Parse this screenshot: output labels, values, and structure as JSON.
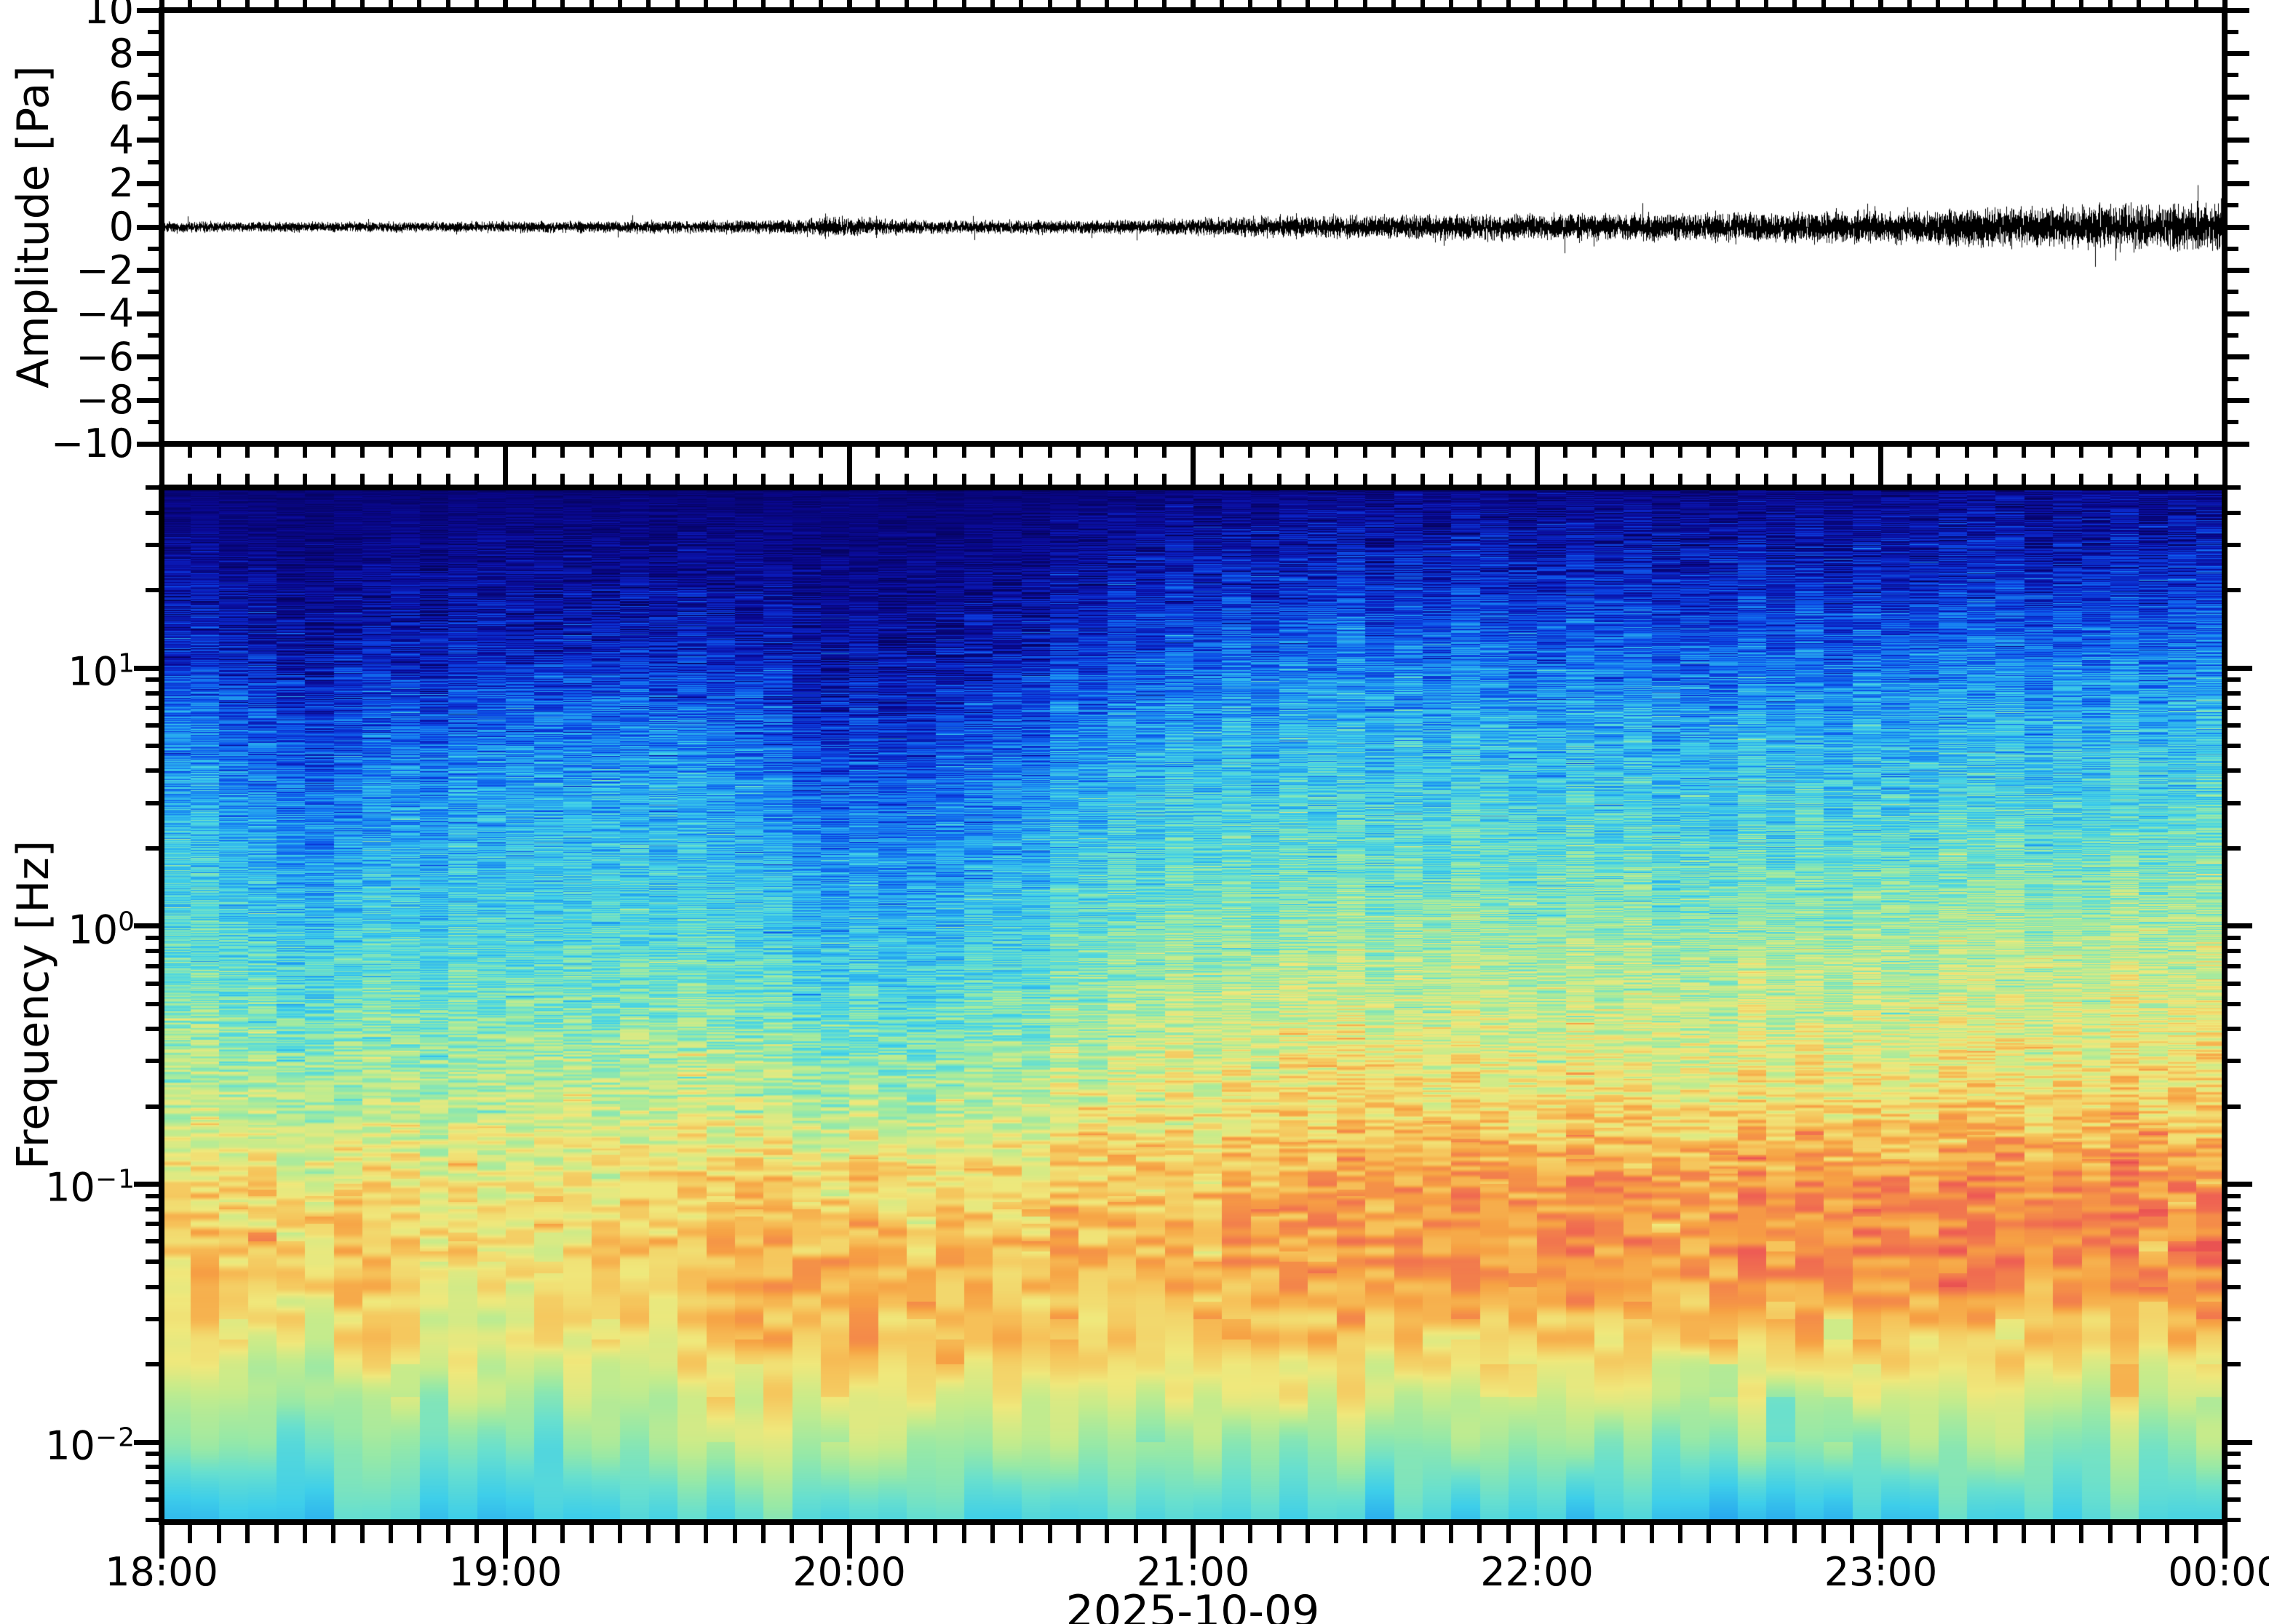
{
  "figure": {
    "background": "#ffffff",
    "frame_color": "#000000",
    "date_label": "2025-10-09"
  },
  "chart_data": [
    {
      "type": "line",
      "name": "pressure-waveform",
      "title": "",
      "xlabel": "",
      "ylabel": "Amplitude [Pa]",
      "ylim": [
        -10,
        10
      ],
      "ytick_values": [
        10,
        8,
        6,
        4,
        2,
        0,
        -2,
        -4,
        -6,
        -8,
        -10
      ],
      "ytick_labels": [
        "10",
        "8",
        "6",
        "4",
        "2",
        "0",
        "−2",
        "−4",
        "−6",
        "−8",
        "−10"
      ],
      "xtick_hours": [
        18,
        19,
        20,
        21,
        22,
        23,
        24
      ],
      "xtick_labels": [
        "18:00",
        "19:00",
        "20:00",
        "21:00",
        "22:00",
        "23:00",
        "00:00"
      ],
      "minor_xtick_minutes": 5,
      "line_color": "#000000",
      "noise_envelope": {
        "t_hours": [
          18.0,
          18.3,
          18.7,
          19.0,
          19.4,
          19.8,
          19.95,
          20.1,
          20.4,
          20.8,
          21.0,
          21.2,
          21.5,
          21.8,
          22.1,
          22.4,
          22.7,
          23.0,
          23.2,
          23.5,
          23.8,
          24.0
        ],
        "amp_pa": [
          0.22,
          0.21,
          0.2,
          0.22,
          0.24,
          0.28,
          0.4,
          0.3,
          0.26,
          0.28,
          0.33,
          0.42,
          0.46,
          0.5,
          0.54,
          0.57,
          0.6,
          0.62,
          0.72,
          0.82,
          0.9,
          0.97
        ]
      },
      "spikes": [
        {
          "t": 19.93,
          "amp_pa": 0.9
        },
        {
          "t": 20.08,
          "amp_pa": 0.75
        },
        {
          "t": 20.55,
          "amp_pa": 0.6
        },
        {
          "t": 21.3,
          "amp_pa": 0.85
        },
        {
          "t": 21.78,
          "amp_pa": 0.9
        },
        {
          "t": 22.2,
          "amp_pa": 0.8
        },
        {
          "t": 22.52,
          "amp_pa": 0.85
        },
        {
          "t": 22.87,
          "amp_pa": 1.5
        },
        {
          "t": 23.2,
          "amp_pa": 1.25
        },
        {
          "t": 23.45,
          "amp_pa": 1.15
        },
        {
          "t": 23.62,
          "amp_pa": 1.1
        },
        {
          "t": 23.85,
          "amp_pa": 1.45
        }
      ]
    },
    {
      "type": "heatmap",
      "name": "spectrogram",
      "title": "",
      "ylabel": "Frequency [Hz]",
      "yscale": "log",
      "freq_top_hz": 50,
      "freq_bottom_hz": 0.0049,
      "ytick_exponents": [
        1,
        0,
        -1,
        -2
      ],
      "ytick_exponent_labels": [
        "1",
        "0",
        "−1",
        "−2"
      ],
      "xtick_hours": [
        18,
        19,
        20,
        21,
        22,
        23,
        24
      ],
      "xtick_labels": [
        "18:00",
        "19:00",
        "20:00",
        "21:00",
        "22:00",
        "23:00",
        "00:00"
      ],
      "xlabel_date": "2025-10-09",
      "column_minutes": 5,
      "time_grid_hours": [
        18,
        18.5,
        19,
        19.5,
        20,
        20.5,
        21,
        21.5,
        22,
        22.5,
        23,
        23.5,
        24
      ],
      "freq_grid_log10hz": [
        1.7,
        1.4,
        1.1,
        0.8,
        0.5,
        0.2,
        -0.1,
        -0.4,
        -0.7,
        -1.0,
        -1.3,
        -1.6,
        -1.9,
        -2.31
      ],
      "intensity_grid": [
        [
          0.03,
          0.03,
          0.03,
          0.03,
          0.03,
          0.03,
          0.04,
          0.05,
          0.05,
          0.05,
          0.05,
          0.06,
          0.06
        ],
        [
          0.07,
          0.05,
          0.07,
          0.07,
          0.05,
          0.06,
          0.11,
          0.13,
          0.13,
          0.12,
          0.12,
          0.13,
          0.14
        ],
        [
          0.14,
          0.09,
          0.14,
          0.14,
          0.08,
          0.11,
          0.21,
          0.25,
          0.24,
          0.22,
          0.23,
          0.25,
          0.26
        ],
        [
          0.27,
          0.17,
          0.27,
          0.28,
          0.15,
          0.22,
          0.33,
          0.36,
          0.35,
          0.33,
          0.34,
          0.36,
          0.37
        ],
        [
          0.36,
          0.26,
          0.36,
          0.37,
          0.24,
          0.31,
          0.41,
          0.43,
          0.42,
          0.41,
          0.41,
          0.43,
          0.44
        ],
        [
          0.41,
          0.34,
          0.41,
          0.42,
          0.32,
          0.38,
          0.47,
          0.49,
          0.49,
          0.48,
          0.49,
          0.51,
          0.52
        ],
        [
          0.47,
          0.42,
          0.47,
          0.48,
          0.4,
          0.45,
          0.54,
          0.57,
          0.57,
          0.56,
          0.57,
          0.59,
          0.6
        ],
        [
          0.54,
          0.5,
          0.54,
          0.56,
          0.48,
          0.53,
          0.6,
          0.64,
          0.63,
          0.62,
          0.63,
          0.65,
          0.66
        ],
        [
          0.61,
          0.58,
          0.61,
          0.64,
          0.58,
          0.62,
          0.68,
          0.72,
          0.71,
          0.7,
          0.71,
          0.73,
          0.73
        ],
        [
          0.69,
          0.7,
          0.68,
          0.73,
          0.74,
          0.73,
          0.76,
          0.81,
          0.83,
          0.82,
          0.83,
          0.86,
          0.84
        ],
        [
          0.73,
          0.74,
          0.71,
          0.77,
          0.8,
          0.76,
          0.78,
          0.82,
          0.85,
          0.84,
          0.85,
          0.87,
          0.85
        ],
        [
          0.66,
          0.69,
          0.67,
          0.73,
          0.78,
          0.76,
          0.74,
          0.75,
          0.74,
          0.73,
          0.74,
          0.76,
          0.74
        ],
        [
          0.52,
          0.56,
          0.55,
          0.61,
          0.67,
          0.62,
          0.6,
          0.6,
          0.58,
          0.56,
          0.58,
          0.61,
          0.58
        ],
        [
          0.38,
          0.42,
          0.4,
          0.46,
          0.49,
          0.45,
          0.44,
          0.42,
          0.4,
          0.38,
          0.42,
          0.46,
          0.42
        ]
      ],
      "colormap_stops": [
        [
          0.0,
          "#060460"
        ],
        [
          0.06,
          "#0a0890"
        ],
        [
          0.13,
          "#0b1fc0"
        ],
        [
          0.2,
          "#0c46e4"
        ],
        [
          0.27,
          "#1478f2"
        ],
        [
          0.34,
          "#27a8f0"
        ],
        [
          0.41,
          "#3fcfea"
        ],
        [
          0.48,
          "#69e0cf"
        ],
        [
          0.54,
          "#97e9a8"
        ],
        [
          0.61,
          "#c6ec8c"
        ],
        [
          0.68,
          "#f0e87c"
        ],
        [
          0.75,
          "#f6c55c"
        ],
        [
          0.81,
          "#f7a244"
        ],
        [
          0.88,
          "#f2794e"
        ],
        [
          0.94,
          "#ee5b55"
        ],
        [
          1.0,
          "#e4494e"
        ]
      ]
    }
  ]
}
